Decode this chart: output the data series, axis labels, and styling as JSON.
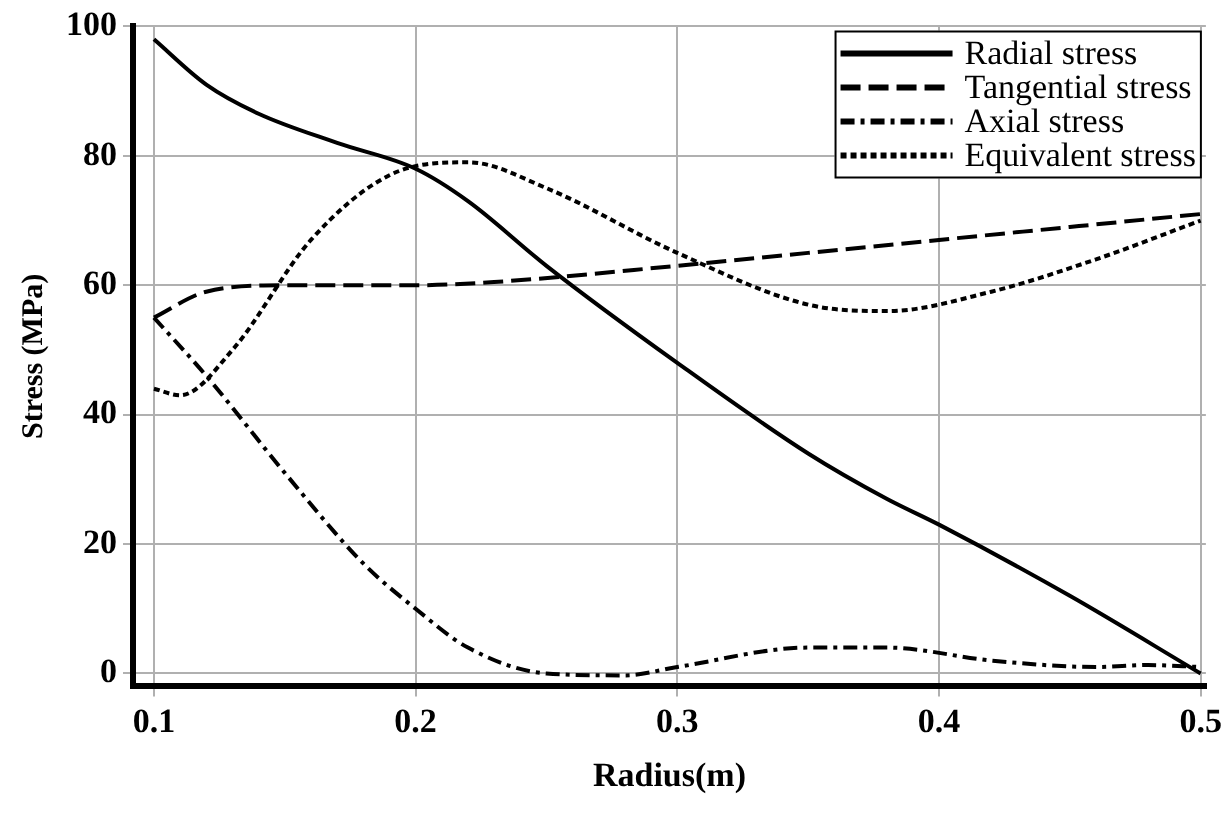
{
  "chart_data": {
    "type": "line",
    "xlabel": "Radius(m)",
    "ylabel": "Stress (MPa)",
    "xlim": [
      0.092,
      0.502
    ],
    "ylim": [
      -2,
      100
    ],
    "xticks": [
      0.1,
      0.2,
      0.3,
      0.4,
      0.5
    ],
    "yticks": [
      0,
      20,
      40,
      60,
      80,
      100
    ],
    "grid": true,
    "legend": "top right",
    "marker": "none",
    "series": [
      {
        "name": "Radial stress",
        "color": "#000000",
        "line_style": "solid",
        "x": [
          0.1,
          0.12,
          0.14,
          0.17,
          0.2,
          0.22,
          0.25,
          0.3,
          0.35,
          0.38,
          0.4,
          0.45,
          0.5
        ],
        "values": [
          98,
          91,
          86.5,
          82,
          78,
          73,
          63,
          48,
          34,
          27,
          23,
          12,
          0
        ]
      },
      {
        "name": "Tangential stress",
        "color": "#000000",
        "line_style": "dashed",
        "x": [
          0.1,
          0.12,
          0.15,
          0.2,
          0.23,
          0.3,
          0.35,
          0.4,
          0.45,
          0.5
        ],
        "values": [
          55,
          59,
          60,
          60,
          60.5,
          63,
          65,
          67,
          69,
          71
        ]
      },
      {
        "name": "Axial stress",
        "color": "#000000",
        "line_style": "dashdot",
        "x": [
          0.1,
          0.12,
          0.15,
          0.18,
          0.2,
          0.22,
          0.25,
          0.28,
          0.3,
          0.35,
          0.38,
          0.42,
          0.46,
          0.48,
          0.5
        ],
        "values": [
          55,
          46,
          31,
          17,
          10,
          4,
          0,
          -0.3,
          1,
          4,
          4,
          2,
          1,
          1.3,
          1
        ]
      },
      {
        "name": "Equivalent stress",
        "color": "#000000",
        "line_style": "dotted",
        "x": [
          0.1,
          0.11,
          0.13,
          0.16,
          0.19,
          0.22,
          0.25,
          0.3,
          0.35,
          0.38,
          0.42,
          0.46,
          0.5
        ],
        "values": [
          44,
          43,
          50,
          67,
          77,
          79,
          75,
          65,
          57,
          56,
          59,
          64,
          70
        ]
      }
    ]
  }
}
